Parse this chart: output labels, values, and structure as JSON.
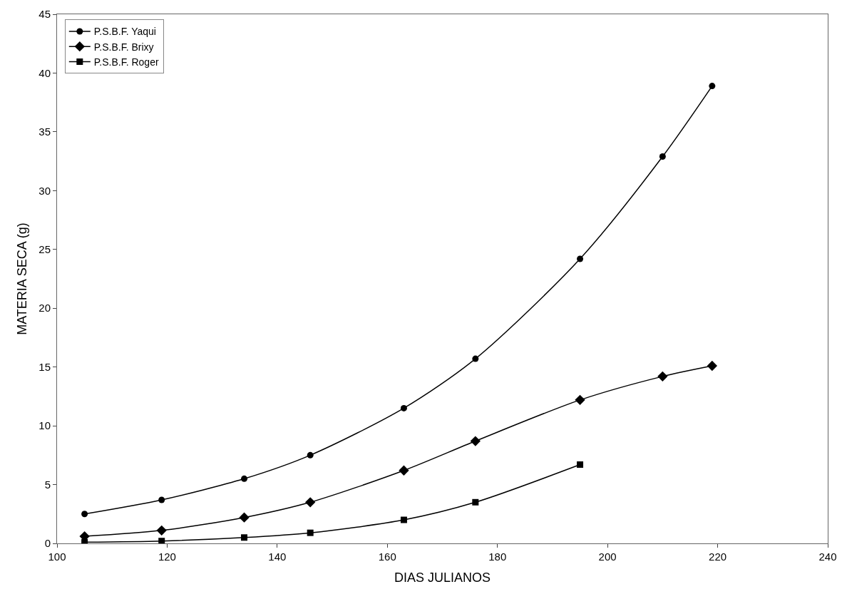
{
  "chart_data": {
    "type": "line",
    "xlabel": "DIAS JULIANOS",
    "ylabel": "MATERIA SECA (g)",
    "xlim": [
      100,
      240
    ],
    "xticks": [
      100,
      120,
      140,
      160,
      180,
      200,
      220,
      240
    ],
    "ylim": [
      0,
      45
    ],
    "yticks": [
      0,
      5,
      10,
      15,
      20,
      25,
      30,
      35,
      40,
      45
    ],
    "grid": false,
    "legend": "top left",
    "line_style": "solid",
    "series": [
      {
        "name": "P.S.B.F. Yaqui",
        "color": "#000000",
        "marker": "circle",
        "x": [
          105,
          119,
          134,
          146,
          163,
          176,
          195,
          210,
          219
        ],
        "values": [
          2.5,
          3.7,
          5.5,
          7.5,
          11.5,
          15.7,
          24.2,
          32.9,
          38.9
        ]
      },
      {
        "name": "P.S.B.F. Brixy",
        "color": "#000000",
        "marker": "diamond",
        "x": [
          105,
          119,
          134,
          146,
          163,
          176,
          195,
          210,
          219
        ],
        "values": [
          0.6,
          1.1,
          2.2,
          3.5,
          6.2,
          8.7,
          12.2,
          14.2,
          15.1
        ]
      },
      {
        "name": "P.S.B.F. Roger",
        "color": "#000000",
        "marker": "square",
        "x": [
          105,
          119,
          134,
          146,
          163,
          176,
          195
        ],
        "values": [
          0.1,
          0.2,
          0.5,
          0.9,
          2.0,
          3.5,
          6.7
        ]
      }
    ]
  }
}
